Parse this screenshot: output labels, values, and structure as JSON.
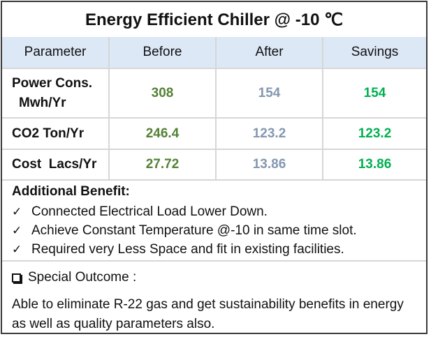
{
  "title": "Energy Efficient Chiller @ -10 ℃",
  "table": {
    "headers": [
      "Parameter",
      "Before",
      "After",
      "Savings"
    ],
    "rows": [
      {
        "parameter_line1": "Power Cons.",
        "parameter_line2": "Mwh/Yr",
        "before": "308",
        "after": "154",
        "savings": "154"
      },
      {
        "parameter": "CO2 Ton/Yr",
        "before": "246.4",
        "after": "123.2",
        "savings": "123.2"
      },
      {
        "parameter": "Cost  Lacs/Yr",
        "before": "27.72",
        "after": "13.86",
        "savings": "13.86"
      }
    ],
    "colors": {
      "before": "#548235",
      "after": "#8497b0",
      "savings": "#00b050",
      "header_bg": "#dde8f6"
    }
  },
  "benefits": {
    "heading": "Additional Benefit:",
    "icon": "checkmark-icon",
    "items": [
      "Connected Electrical Load Lower Down.",
      "Achieve Constant Temperature @-10 in same time slot.",
      "Required very Less Space and fit in existing facilities."
    ]
  },
  "outcome": {
    "icon": "checkbox-icon",
    "heading": "Special Outcome :",
    "text": "Able to eliminate R-22 gas and get sustainability benefits in energy as well as quality parameters also."
  }
}
